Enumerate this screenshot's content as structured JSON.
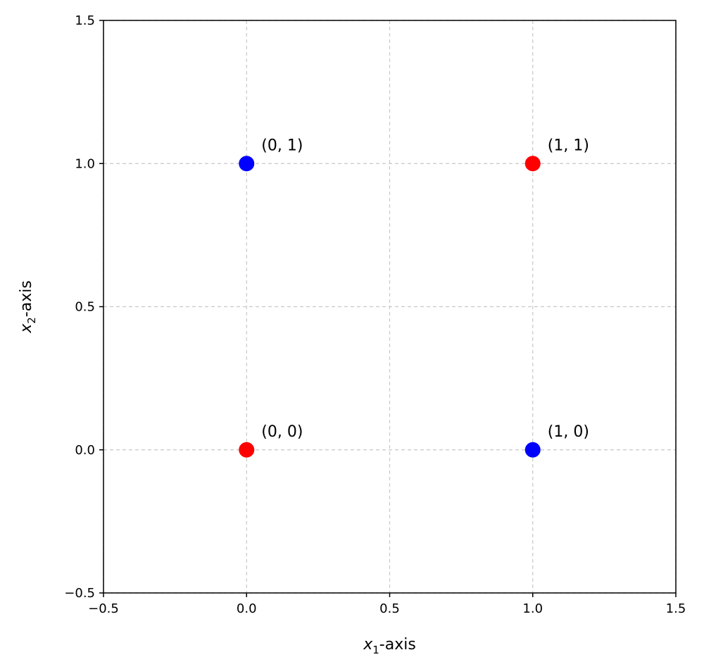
{
  "chart_data": {
    "type": "scatter",
    "title": "",
    "xlabel_var": "x",
    "xlabel_sub": "1",
    "xlabel_rest": "-axis",
    "ylabel_var": "x",
    "ylabel_sub": "2",
    "ylabel_rest": "-axis",
    "xlim": [
      -0.5,
      1.5
    ],
    "ylim": [
      -0.5,
      1.5
    ],
    "xticks": [
      -0.5,
      0.0,
      0.5,
      1.0,
      1.5
    ],
    "yticks": [
      -0.5,
      0.0,
      0.5,
      1.0,
      1.5
    ],
    "xtick_labels": [
      "−0.5",
      "0.0",
      "0.5",
      "1.0",
      "1.5"
    ],
    "ytick_labels": [
      "−0.5",
      "0.0",
      "0.5",
      "1.0",
      "1.5"
    ],
    "grid": true,
    "points": [
      {
        "x": 0,
        "y": 0,
        "label": "(0, 0)",
        "color": "#ff0000"
      },
      {
        "x": 0,
        "y": 1,
        "label": "(0, 1)",
        "color": "#0000ff"
      },
      {
        "x": 1,
        "y": 0,
        "label": "(1, 0)",
        "color": "#0000ff"
      },
      {
        "x": 1,
        "y": 1,
        "label": "(1, 1)",
        "color": "#ff0000"
      }
    ]
  }
}
